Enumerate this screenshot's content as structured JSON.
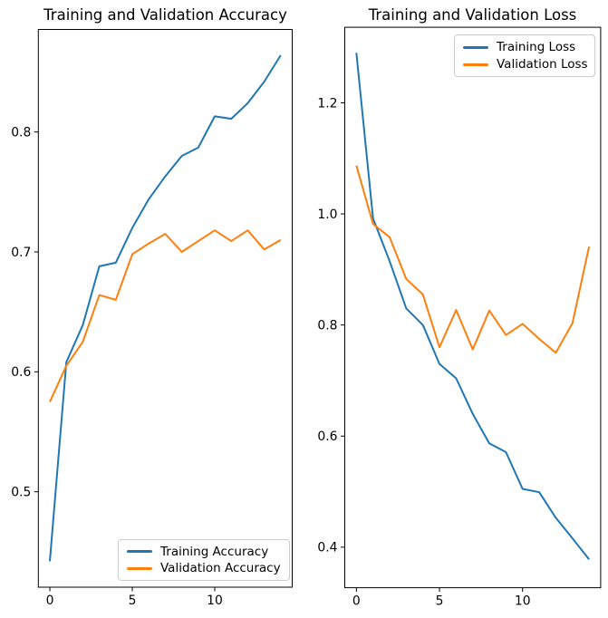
{
  "figure": {
    "background": "#ffffff",
    "axis_color": "#000000",
    "legend_border_color": "#cccccc"
  },
  "chart_data": [
    {
      "type": "line",
      "title": "Training and Validation Accuracy",
      "x": [
        0,
        1,
        2,
        3,
        4,
        5,
        6,
        7,
        8,
        9,
        10,
        11,
        12,
        13,
        14
      ],
      "series": [
        {
          "name": "Training Accuracy",
          "color": "#1f77b4",
          "values": [
            0.442,
            0.608,
            0.639,
            0.688,
            0.691,
            0.72,
            0.744,
            0.763,
            0.78,
            0.787,
            0.813,
            0.811,
            0.824,
            0.842,
            0.864
          ]
        },
        {
          "name": "Validation Accuracy",
          "color": "#ff7f0e",
          "values": [
            0.575,
            0.605,
            0.625,
            0.664,
            0.66,
            0.698,
            0.707,
            0.715,
            0.7,
            0.709,
            0.718,
            0.709,
            0.718,
            0.702,
            0.71
          ]
        }
      ],
      "xlim": [
        -0.7,
        14.7
      ],
      "ylim": [
        0.4204,
        0.8855
      ],
      "xticks": [
        0,
        5,
        10
      ],
      "xtick_labels": [
        "0",
        "5",
        "10"
      ],
      "yticks": [
        0.5,
        0.6,
        0.7,
        0.8
      ],
      "ytick_labels": [
        "0.5",
        "0.6",
        "0.7",
        "0.8"
      ],
      "xlabel": "",
      "ylabel": "",
      "grid": false,
      "legend_position": "lower right"
    },
    {
      "type": "line",
      "title": "Training and Validation Loss",
      "x": [
        0,
        1,
        2,
        3,
        4,
        5,
        6,
        7,
        8,
        9,
        10,
        11,
        12,
        13,
        14
      ],
      "series": [
        {
          "name": "Training Loss",
          "color": "#1f77b4",
          "values": [
            1.29,
            0.992,
            0.915,
            0.83,
            0.8,
            0.73,
            0.704,
            0.64,
            0.587,
            0.571,
            0.505,
            0.499,
            0.453,
            0.416,
            0.378
          ]
        },
        {
          "name": "Validation Loss",
          "color": "#ff7f0e",
          "values": [
            1.087,
            0.982,
            0.958,
            0.883,
            0.855,
            0.76,
            0.827,
            0.756,
            0.826,
            0.782,
            0.802,
            0.775,
            0.75,
            0.803,
            0.941
          ]
        }
      ],
      "xlim": [
        -0.7,
        14.7
      ],
      "ylim": [
        0.327,
        1.336
      ],
      "xticks": [
        0,
        5,
        10
      ],
      "xtick_labels": [
        "0",
        "5",
        "10"
      ],
      "yticks": [
        0.4,
        0.6,
        0.8,
        1.0,
        1.2
      ],
      "ytick_labels": [
        "0.4",
        "0.6",
        "0.8",
        "1.0",
        "1.2"
      ],
      "xlabel": "",
      "ylabel": "",
      "grid": false,
      "legend_position": "upper right"
    }
  ]
}
